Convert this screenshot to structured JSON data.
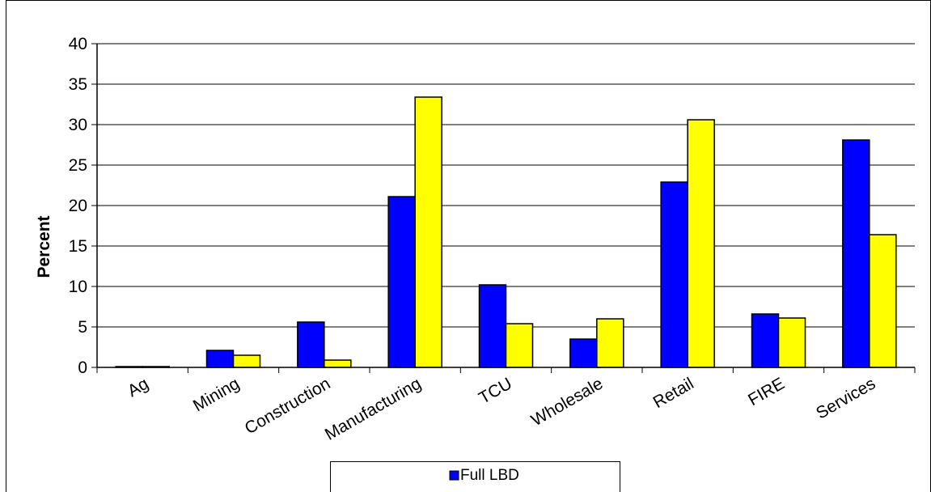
{
  "chart_data": {
    "type": "bar",
    "categories": [
      "Ag",
      "Mining",
      "Construction",
      "Manufacturing",
      "TCU",
      "Wholesale",
      "Retail",
      "FIRE",
      "Services"
    ],
    "series": [
      {
        "name": "Full LBD",
        "color": "#0000ff",
        "values": [
          0.1,
          2.1,
          5.6,
          21.1,
          10.2,
          3.5,
          22.9,
          6.6,
          28.1
        ]
      },
      {
        "color": "#ffff00",
        "values": [
          0.1,
          1.5,
          0.9,
          33.4,
          5.4,
          6.0,
          30.6,
          6.1,
          16.4
        ]
      }
    ],
    "ylabel": "Percent",
    "xlabel": "",
    "title": "",
    "ylim": [
      0,
      40
    ],
    "yticks": [
      "0",
      "5",
      "10",
      "15",
      "20",
      "25",
      "30",
      "35",
      "40"
    ],
    "grid": true,
    "legend_position": "bottom"
  }
}
